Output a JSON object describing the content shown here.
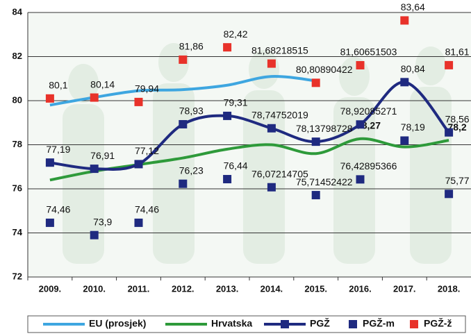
{
  "chart_data": {
    "type": "line",
    "categories": [
      "2009.",
      "2010.",
      "2011.",
      "2012.",
      "2013.",
      "2014.",
      "2015.",
      "2016.",
      "2017.",
      "2018."
    ],
    "ylim": [
      72,
      84
    ],
    "yticks": [
      72,
      74,
      76,
      78,
      80,
      82,
      84
    ],
    "grid": true,
    "legend": "bottom",
    "series": [
      {
        "name": "EU (prosjek)",
        "color": "#3ea6e0",
        "line": true,
        "marker": false,
        "values": [
          79.8,
          80.15,
          80.45,
          80.5,
          80.7,
          81.1,
          80.9,
          null,
          null,
          null
        ]
      },
      {
        "name": "Hrvatska",
        "color": "#2e9a3a",
        "line": true,
        "marker": false,
        "values": [
          76.4,
          76.8,
          77.1,
          77.4,
          77.8,
          78.0,
          77.6,
          78.27,
          77.9,
          78.2
        ],
        "value_labels": [
          null,
          null,
          null,
          null,
          null,
          null,
          null,
          "78,27",
          null,
          "78,2"
        ]
      },
      {
        "name": "PGŽ",
        "color": "#1f2a80",
        "line": true,
        "marker": true,
        "values": [
          77.19,
          76.91,
          77.12,
          78.93,
          79.31,
          78.74752019,
          78.13798728,
          78.92085271,
          80.84,
          78.56
        ],
        "value_labels": [
          "77,19",
          "76,91",
          "77,12",
          "78,93",
          "79,31",
          "78,74752019",
          "78,13798728",
          "78,92085271",
          "80,84",
          "78,56"
        ]
      },
      {
        "name": "PGŽ-m",
        "color": "#1f2a80",
        "line": false,
        "marker": true,
        "values": [
          74.46,
          73.9,
          74.46,
          76.23,
          76.44,
          76.07214705,
          75.71452422,
          76.42895366,
          78.19,
          75.77
        ],
        "value_labels": [
          "74,46",
          "73,9",
          "74,46",
          "76,23",
          "76,44",
          "76,07214705",
          "75,71452422",
          "76,42895366",
          "78,19",
          "75,77"
        ]
      },
      {
        "name": "PGŽ-ž",
        "color": "#e8322a",
        "line": false,
        "marker": true,
        "values": [
          80.1,
          80.14,
          79.94,
          81.86,
          82.42,
          81.68218515,
          80.80890422,
          81.60651503,
          83.64,
          81.61
        ],
        "value_labels": [
          "80,1",
          "80,14",
          "79,94",
          "81,86",
          "82,42",
          "81,68218515",
          "80,80890422",
          "81,60651503",
          "83,64",
          "81,61"
        ]
      }
    ]
  }
}
